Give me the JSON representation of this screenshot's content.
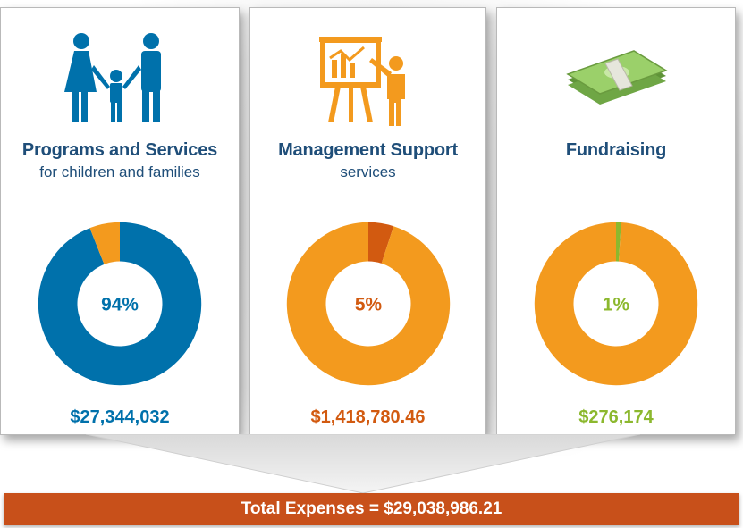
{
  "colors": {
    "blue": "#0071ab",
    "orange": "#f39a1e",
    "dark_orange": "#d25a10",
    "green": "#8cb82e",
    "title_navy": "#1f4e79",
    "total_bar": "#c8501a"
  },
  "cards": [
    {
      "title": "Programs and Services",
      "subtitle": "for children and families",
      "icon": "family-icon",
      "percent_label": "94%",
      "amount": "$27,344,032",
      "accent": "#0071ab"
    },
    {
      "title": "Management Support",
      "subtitle": "services",
      "icon": "presentation-icon",
      "percent_label": "5%",
      "amount": "$1,418,780.46",
      "accent": "#d25a10"
    },
    {
      "title": "Fundraising",
      "subtitle": "",
      "icon": "money-stack-icon",
      "percent_label": "1%",
      "amount": "$276,174",
      "accent": "#8cb82e"
    }
  ],
  "total": {
    "label": "Total Expenses = $29,038,986.21"
  },
  "chart_data": [
    {
      "type": "pie",
      "title": "Programs and Services",
      "subtitle": "for children and families",
      "donut": true,
      "slices": [
        {
          "value": 94,
          "color": "#0071ab"
        },
        {
          "value": 6,
          "color": "#f39a1e"
        }
      ],
      "center_label": "94%",
      "amount_label": "$27,344,032"
    },
    {
      "type": "pie",
      "title": "Management Support",
      "subtitle": "services",
      "donut": true,
      "slices": [
        {
          "value": 5,
          "color": "#d25a10"
        },
        {
          "value": 95,
          "color": "#f39a1e"
        }
      ],
      "center_label": "5%",
      "amount_label": "$1,418,780.46"
    },
    {
      "type": "pie",
      "title": "Fundraising",
      "subtitle": "",
      "donut": true,
      "slices": [
        {
          "value": 1,
          "color": "#8cb82e"
        },
        {
          "value": 99,
          "color": "#f39a1e"
        }
      ],
      "center_label": "1%",
      "amount_label": "$276,174"
    }
  ]
}
